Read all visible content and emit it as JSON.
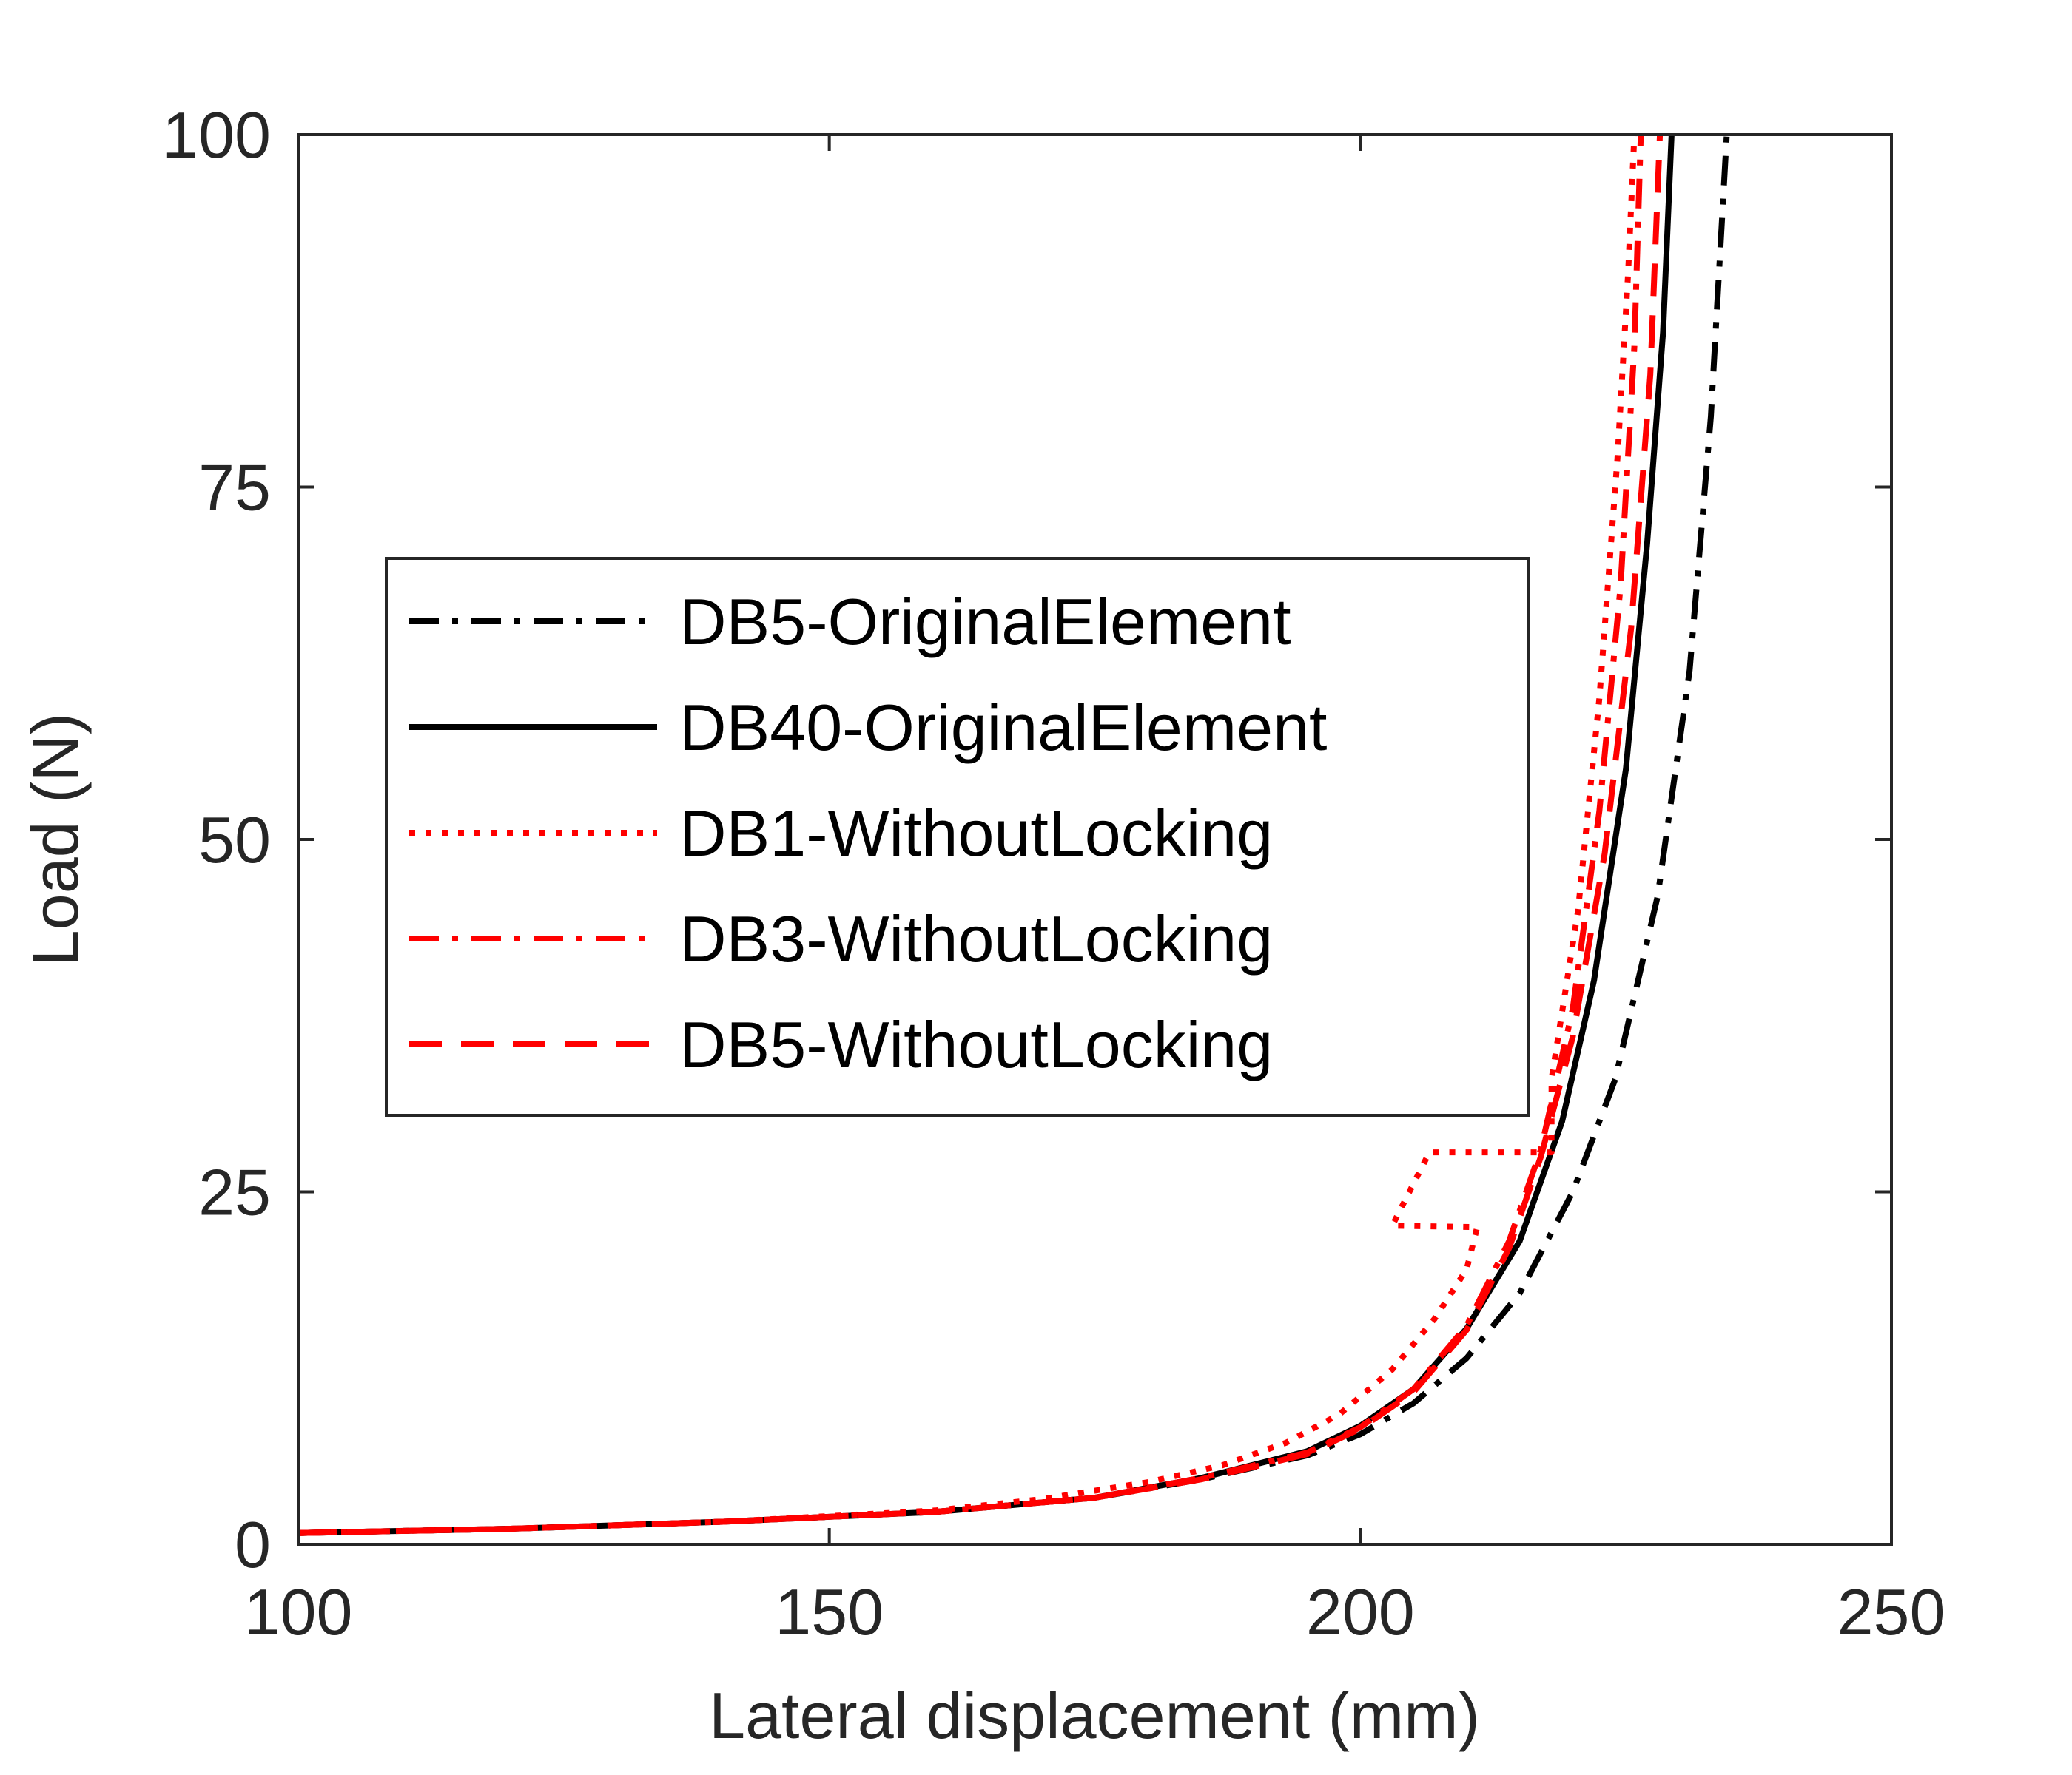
{
  "chart_data": {
    "type": "line",
    "xlabel": "Lateral displacement (mm)",
    "ylabel": "Load (N)",
    "xlim": [
      100,
      250
    ],
    "ylim": [
      0,
      100
    ],
    "xticks": [
      "100",
      "150",
      "200",
      "250"
    ],
    "yticks": [
      "0",
      "25",
      "50",
      "75",
      "100"
    ],
    "grid": false,
    "legend_position": "center-left",
    "series": [
      {
        "name": "DB5-OriginalElement",
        "color": "#000000",
        "dash": "dashdot",
        "x": [
          100,
          120,
          140,
          160,
          175,
          185,
          195,
          200,
          205,
          210,
          215,
          220,
          224,
          228,
          231,
          233,
          234.5
        ],
        "y": [
          0.8,
          1.1,
          1.6,
          2.3,
          3.3,
          4.6,
          6.3,
          7.8,
          10,
          13.2,
          17.8,
          25,
          33,
          46,
          62,
          80,
          100
        ]
      },
      {
        "name": "DB40-OriginalElement",
        "color": "#000000",
        "dash": "solid",
        "x": [
          100,
          120,
          140,
          160,
          175,
          185,
          195,
          200,
          205,
          210,
          215,
          219,
          222,
          225,
          227,
          228.5,
          229.3
        ],
        "y": [
          0.8,
          1.1,
          1.6,
          2.3,
          3.3,
          4.7,
          6.6,
          8.4,
          11,
          15.3,
          21.5,
          30,
          40,
          55,
          71,
          86,
          100
        ]
      },
      {
        "name": "DB1-WithoutLocking",
        "color": "#ff0000",
        "dash": "dotted",
        "x": [
          100,
          120,
          140,
          160,
          170,
          180,
          187,
          193,
          198,
          203,
          207,
          210,
          211,
          203,
          203,
          206.5,
          218,
          218,
          220.5,
          222.5,
          224.2,
          225.2,
          225.8
        ],
        "y": [
          0.8,
          1.1,
          1.6,
          2.4,
          3.2,
          4.4,
          5.6,
          7.2,
          9.2,
          12.4,
          16,
          19.5,
          22.5,
          22.6,
          22.6,
          27.8,
          27.8,
          33,
          45,
          60,
          77,
          90,
          100
        ]
      },
      {
        "name": "DB3-WithoutLocking",
        "color": "#ff0000",
        "dash": "dashdot",
        "x": [
          100,
          120,
          140,
          160,
          175,
          185,
          195,
          200,
          205,
          210,
          214,
          217,
          220,
          222.5,
          224.5,
          225.8,
          226.4
        ],
        "y": [
          0.8,
          1.1,
          1.6,
          2.3,
          3.3,
          4.7,
          6.5,
          8.3,
          11,
          15.5,
          21.5,
          28,
          38,
          52,
          68,
          85,
          100
        ]
      },
      {
        "name": "DB5-WithoutLocking",
        "color": "#ff0000",
        "dash": "dashed",
        "x": [
          100,
          120,
          140,
          160,
          175,
          185,
          195,
          200,
          205,
          210,
          214,
          217,
          220,
          223,
          225.5,
          227.3,
          228.2
        ],
        "y": [
          0.8,
          1.1,
          1.6,
          2.3,
          3.3,
          4.6,
          6.4,
          8.2,
          10.8,
          15.2,
          21,
          27.5,
          36,
          49,
          65,
          83,
          100
        ]
      }
    ]
  }
}
